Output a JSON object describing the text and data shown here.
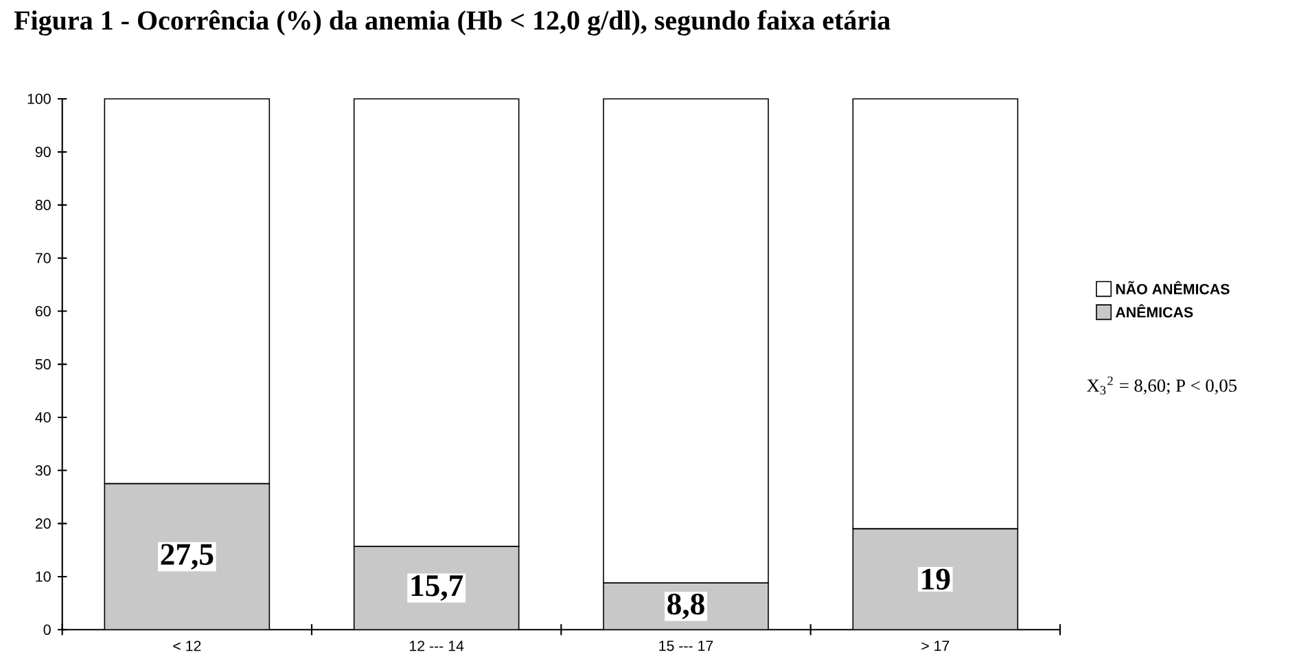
{
  "chart_data": {
    "type": "bar",
    "stacked": true,
    "title": "Figura 1 - Ocorrência (%) da anemia (Hb < 12,0 g/dl), segundo faixa etária",
    "categories": [
      "< 12",
      "12 --- 14",
      "15 --- 17",
      "> 17"
    ],
    "series": [
      {
        "name": "ANÊMICAS",
        "color": "#c8c8c8",
        "values": [
          27.5,
          15.7,
          8.8,
          19
        ],
        "value_labels": [
          "27,5",
          "15,7",
          "8,8",
          "19"
        ]
      },
      {
        "name": "NÃO ANÊMICAS",
        "color": "#ffffff",
        "values": [
          72.5,
          84.3,
          91.2,
          81
        ]
      }
    ],
    "ylim": [
      0,
      100
    ],
    "yticks": [
      0,
      10,
      20,
      30,
      40,
      50,
      60,
      70,
      80,
      90,
      100
    ],
    "legend": "right",
    "annotations": [
      "X$_{3}$$^{2}$ = 8,60; P < 0,05"
    ]
  }
}
